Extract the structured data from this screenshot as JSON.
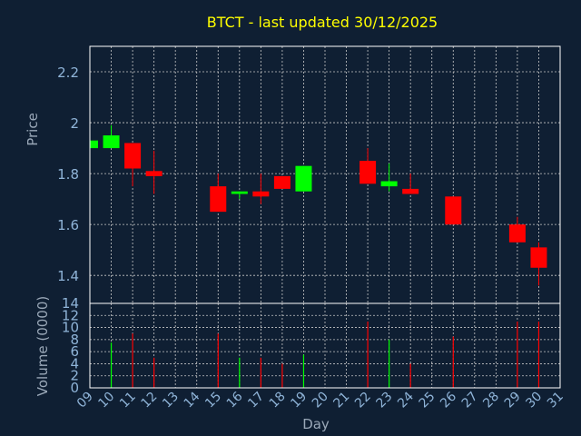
{
  "chart_data": {
    "type": "candlestick",
    "title": "BTCT - last updated 30/12/2025",
    "colors": {
      "background": "#0f1f33",
      "plot_bg": "#0f1f33",
      "title": "#ffff00",
      "axis_text": "#8fb4d8",
      "label_text": "#9aa8b8",
      "grid": "#c8c8c8",
      "up": "#00ff00",
      "down": "#ff0000",
      "frame": "#ffffff"
    },
    "price_panel": {
      "ylabel": "Price",
      "ylim": [
        1.29,
        2.3
      ],
      "ticks": [
        1.4,
        1.6,
        1.8,
        2,
        2.2
      ],
      "tick_labels": [
        "1.4",
        "1.6",
        "1.8",
        "2",
        "2.2"
      ]
    },
    "volume_panel": {
      "ylabel": "Volume (0000)",
      "ylim": [
        0,
        14
      ],
      "ticks": [
        0,
        2,
        4,
        6,
        8,
        10,
        12,
        14
      ],
      "tick_labels": [
        "0",
        "2",
        "4",
        "6",
        "8",
        "10",
        "12",
        "14"
      ]
    },
    "xlabel": "Day",
    "x_ticks": [
      "09",
      "10",
      "11",
      "12",
      "13",
      "14",
      "15",
      "16",
      "17",
      "18",
      "19",
      "20",
      "21",
      "22",
      "23",
      "24",
      "25",
      "26",
      "27",
      "28",
      "29",
      "30",
      "31"
    ],
    "x_domain": [
      9,
      31
    ],
    "candles": [
      {
        "day": 9,
        "open": 1.9,
        "close": 1.93,
        "high": 1.93,
        "low": 1.9,
        "volume": 0
      },
      {
        "day": 10,
        "open": 1.9,
        "close": 1.95,
        "high": 1.99,
        "low": 1.9,
        "volume": 7.5
      },
      {
        "day": 11,
        "open": 1.92,
        "close": 1.82,
        "high": 1.92,
        "low": 1.75,
        "volume": 9
      },
      {
        "day": 12,
        "open": 1.81,
        "close": 1.79,
        "high": 1.89,
        "low": 1.72,
        "volume": 5
      },
      {
        "day": 15,
        "open": 1.75,
        "close": 1.65,
        "high": 1.8,
        "low": 1.65,
        "volume": 9
      },
      {
        "day": 16,
        "open": 1.72,
        "close": 1.73,
        "high": 1.73,
        "low": 1.7,
        "volume": 5
      },
      {
        "day": 17,
        "open": 1.73,
        "close": 1.71,
        "high": 1.8,
        "low": 1.68,
        "volume": 5
      },
      {
        "day": 18,
        "open": 1.79,
        "close": 1.74,
        "high": 1.79,
        "low": 1.74,
        "volume": 4
      },
      {
        "day": 19,
        "open": 1.73,
        "close": 1.83,
        "high": 1.83,
        "low": 1.73,
        "volume": 5.5
      },
      {
        "day": 22,
        "open": 1.85,
        "close": 1.76,
        "high": 1.9,
        "low": 1.76,
        "volume": 11
      },
      {
        "day": 23,
        "open": 1.75,
        "close": 1.77,
        "high": 1.84,
        "low": 1.73,
        "volume": 8
      },
      {
        "day": 24,
        "open": 1.74,
        "close": 1.72,
        "high": 1.8,
        "low": 1.72,
        "volume": 4
      },
      {
        "day": 26,
        "open": 1.71,
        "close": 1.6,
        "high": 1.71,
        "low": 1.6,
        "volume": 8.5
      },
      {
        "day": 29,
        "open": 1.6,
        "close": 1.53,
        "high": 1.63,
        "low": 1.53,
        "volume": 11
      },
      {
        "day": 30,
        "open": 1.51,
        "close": 1.43,
        "high": 1.53,
        "low": 1.36,
        "volume": 11
      }
    ]
  }
}
